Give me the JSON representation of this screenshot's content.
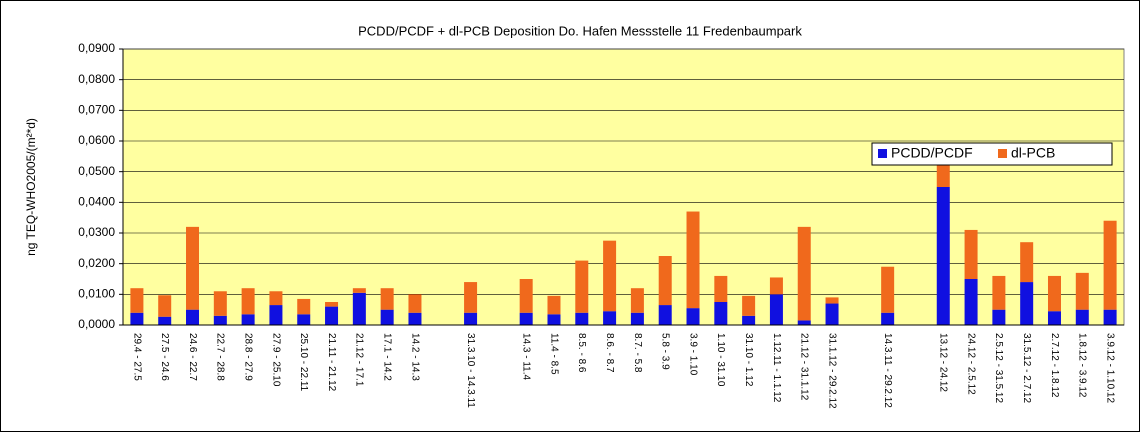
{
  "chart_data": {
    "type": "stacked_bar",
    "title": "PCDD/PCDF + dl-PCB  Deposition Do. Hafen Messstelle 11  Fredenbaumpark",
    "y_label": "ng TEQ-WHO2005/(m²*d)",
    "categories": [
      "29.4 - 27.5",
      "27.5 - 24.6",
      "24.6 - 22.7",
      "22.7 - 28.8",
      "28.8 - 27.9",
      "27.9 - 25.10",
      "25.10 - 22.11",
      "21.11 - 21.12",
      "21.12 - 17.1",
      "17.1 - 14.2",
      "14.2 - 14.3",
      null,
      "31.3.10 - 14.3.11",
      null,
      "14.3 - 11.4",
      "11.4 - 8.5",
      "8.5. - 8.6",
      "8.6. - 8.7",
      "8.7. - 5.8",
      "5.8 - 3.9",
      "3.9 - 1.10",
      "1.10 - 31.10",
      "31.10 - 1.12",
      "1.12.11 - 1.1.12",
      "21.12 - 31.1.12",
      "31.1.12 - 29.2.12",
      null,
      "14.3.11 - 29.2.12",
      null,
      "13.12 - 24.12",
      "24.12 - 2.5.12",
      "2.5.12 - 31.5.12",
      "31.5.12 - 2.7.12",
      "2.7.12 - 1.8.12",
      "1.8.12 - 3.9.12",
      "3.9.12 - 1.10.12"
    ],
    "series": [
      {
        "name": "PCDD/PCDF",
        "color": "#1010e0",
        "values": [
          0.004,
          0.0027,
          0.005,
          0.003,
          0.0035,
          0.0065,
          0.0035,
          0.006,
          0.0105,
          0.005,
          0.004,
          null,
          0.004,
          null,
          0.004,
          0.0035,
          0.004,
          0.0045,
          0.004,
          0.0065,
          0.0055,
          0.0075,
          0.003,
          0.01,
          0.0015,
          0.007,
          null,
          0.004,
          null,
          0.045,
          0.015,
          0.005,
          0.014,
          0.0045,
          0.005,
          0.005
        ]
      },
      {
        "name": "dl-PCB",
        "color": "#f0691c",
        "values": [
          0.008,
          0.007,
          0.027,
          0.008,
          0.0085,
          0.0045,
          0.005,
          0.0015,
          0.0015,
          0.007,
          0.006,
          null,
          0.01,
          null,
          0.011,
          0.006,
          0.017,
          0.023,
          0.008,
          0.016,
          0.0315,
          0.0085,
          0.0065,
          0.0055,
          0.0305,
          0.002,
          null,
          0.015,
          null,
          0.013,
          0.016,
          0.011,
          0.013,
          0.0115,
          0.012,
          0.029
        ]
      }
    ],
    "ylim": [
      0,
      0.09
    ],
    "yticks": [
      {
        "value": 0,
        "label": "0,0000"
      },
      {
        "value": 0.01,
        "label": "0,0100"
      },
      {
        "value": 0.02,
        "label": "0,0200"
      },
      {
        "value": 0.03,
        "label": "0,0300"
      },
      {
        "value": 0.04,
        "label": "0,0400"
      },
      {
        "value": 0.05,
        "label": "0,0500"
      },
      {
        "value": 0.06,
        "label": "0,0600"
      },
      {
        "value": 0.07,
        "label": "0,0700"
      },
      {
        "value": 0.08,
        "label": "0,0800"
      },
      {
        "value": 0.09,
        "label": "0,0900"
      }
    ],
    "grid": true,
    "legend": "upper right"
  }
}
